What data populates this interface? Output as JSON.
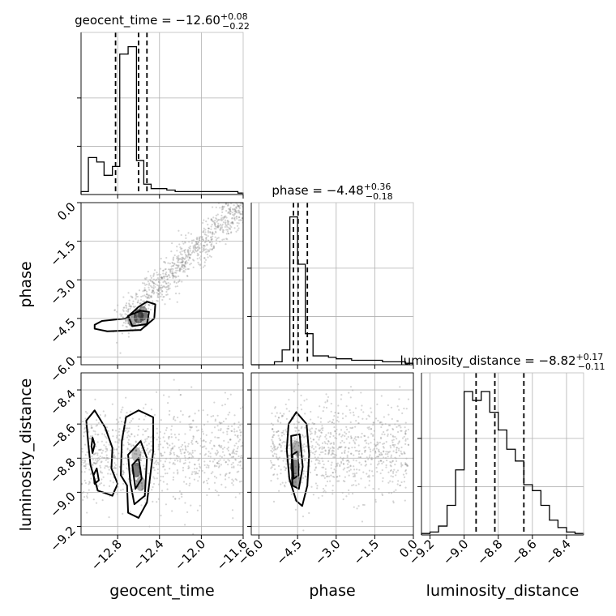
{
  "chart_data": {
    "type": "corner",
    "parameters": [
      "geocent_time",
      "phase",
      "luminosity_distance"
    ],
    "titles": {
      "geocent_time": {
        "name": "geocent_time",
        "median": "−12.60",
        "plus": "+0.08",
        "minus": "−0.22"
      },
      "phase": {
        "name": "phase",
        "median": "−4.48",
        "plus": "+0.36",
        "minus": "−0.18"
      },
      "luminosity_distance": {
        "name": "luminosity_distance",
        "median": "−8.82",
        "plus": "+0.17",
        "minus": "−0.11"
      }
    },
    "ranges": {
      "geocent_time": [
        -13.15,
        -11.6
      ],
      "phase": [
        -6.3,
        0.0
      ],
      "luminosity_distance": [
        -9.25,
        -8.3
      ]
    },
    "ticks": {
      "geocent_time": [
        -12.8,
        -12.4,
        -12.0,
        -11.6
      ],
      "phase": [
        -6.0,
        -4.5,
        -3.0,
        -1.5,
        0.0
      ],
      "luminosity_distance": [
        -9.2,
        -9.0,
        -8.8,
        -8.6,
        -8.4
      ]
    },
    "tick_labels": {
      "geocent_time": [
        "−12.8",
        "−12.4",
        "−12.0",
        "−11.6"
      ],
      "phase": [
        "−6.0",
        "−4.5",
        "−3.0",
        "−1.5",
        "0.0"
      ],
      "luminosity_distance": [
        "−9.2",
        "−9.0",
        "−8.8",
        "−8.6",
        "−8.4"
      ]
    },
    "quantiles": {
      "geocent_time": [
        -12.82,
        -12.6,
        -12.52
      ],
      "phase": [
        -4.66,
        -4.48,
        -4.12
      ],
      "luminosity_distance": [
        -8.93,
        -8.82,
        -8.65
      ]
    },
    "histograms": {
      "geocent_time": {
        "edges": [
          -13.15,
          -13.08,
          -13.0,
          -12.93,
          -12.85,
          -12.78,
          -12.7,
          -12.62,
          -12.55,
          -12.48,
          -12.4,
          -12.33,
          -12.25,
          -12.17,
          -12.1,
          -12.02,
          -11.95,
          -11.87,
          -11.8,
          -11.72,
          -11.65,
          -11.6
        ],
        "counts": [
          0.02,
          0.25,
          0.22,
          0.13,
          0.19,
          0.95,
          1.0,
          0.23,
          0.07,
          0.04,
          0.04,
          0.03,
          0.02,
          0.02,
          0.02,
          0.02,
          0.02,
          0.02,
          0.02,
          0.02,
          0.01
        ]
      },
      "phase": {
        "edges": [
          -6.3,
          -6.0,
          -5.7,
          -5.4,
          -5.1,
          -4.8,
          -4.5,
          -4.2,
          -3.9,
          -3.6,
          -3.3,
          -3.0,
          -2.7,
          -2.4,
          -2.1,
          -1.8,
          -1.5,
          -1.2,
          -0.9,
          -0.6,
          -0.3,
          0.0
        ],
        "counts": [
          0.0,
          0.0,
          0.0,
          0.02,
          0.1,
          1.0,
          0.68,
          0.21,
          0.06,
          0.06,
          0.05,
          0.04,
          0.04,
          0.03,
          0.03,
          0.03,
          0.03,
          0.02,
          0.02,
          0.02,
          0.01
        ]
      },
      "luminosity_distance": {
        "edges": [
          -9.25,
          -9.2,
          -9.15,
          -9.1,
          -9.05,
          -9.0,
          -8.95,
          -8.9,
          -8.85,
          -8.8,
          -8.75,
          -8.7,
          -8.65,
          -8.6,
          -8.55,
          -8.5,
          -8.45,
          -8.4,
          -8.35,
          -8.3
        ],
        "counts": [
          0.01,
          0.02,
          0.06,
          0.2,
          0.44,
          0.97,
          0.91,
          0.97,
          0.83,
          0.71,
          0.58,
          0.5,
          0.34,
          0.3,
          0.2,
          0.1,
          0.05,
          0.02,
          0.01
        ]
      }
    },
    "contours_2d": {
      "phase_vs_geocent_time": [
        [
          [
            -13.02,
            -4.75
          ],
          [
            -12.95,
            -4.6
          ],
          [
            -12.72,
            -4.5
          ],
          [
            -12.6,
            -4.05
          ],
          [
            -12.52,
            -3.85
          ],
          [
            -12.44,
            -3.95
          ],
          [
            -12.45,
            -4.5
          ],
          [
            -12.58,
            -4.95
          ],
          [
            -12.9,
            -5.0
          ],
          [
            -13.02,
            -4.9
          ]
        ],
        [
          [
            -12.7,
            -4.4
          ],
          [
            -12.58,
            -4.2
          ],
          [
            -12.5,
            -4.25
          ],
          [
            -12.52,
            -4.72
          ],
          [
            -12.66,
            -4.8
          ]
        ]
      ],
      "luminosity_distance_vs_geocent_time": [
        [
          [
            -13.1,
            -8.58
          ],
          [
            -13.02,
            -8.52
          ],
          [
            -12.92,
            -8.62
          ],
          [
            -12.85,
            -8.74
          ],
          [
            -12.86,
            -8.86
          ],
          [
            -12.8,
            -8.95
          ],
          [
            -12.85,
            -9.02
          ],
          [
            -12.99,
            -8.99
          ],
          [
            -13.06,
            -8.84
          ],
          [
            -13.08,
            -8.72
          ]
        ],
        [
          [
            -12.72,
            -8.56
          ],
          [
            -12.6,
            -8.52
          ],
          [
            -12.46,
            -8.56
          ],
          [
            -12.46,
            -8.76
          ],
          [
            -12.52,
            -9.06
          ],
          [
            -12.6,
            -9.15
          ],
          [
            -12.7,
            -9.12
          ],
          [
            -12.71,
            -8.96
          ],
          [
            -12.77,
            -8.9
          ],
          [
            -12.76,
            -8.7
          ]
        ],
        [
          [
            -12.7,
            -8.78
          ],
          [
            -12.58,
            -8.7
          ],
          [
            -12.52,
            -8.8
          ],
          [
            -12.54,
            -9.02
          ],
          [
            -12.64,
            -9.07
          ],
          [
            -12.68,
            -8.94
          ]
        ],
        [
          [
            -12.66,
            -8.84
          ],
          [
            -12.6,
            -8.8
          ],
          [
            -12.57,
            -8.92
          ],
          [
            -12.63,
            -8.98
          ]
        ],
        [
          [
            -13.03,
            -8.9
          ],
          [
            -13.0,
            -8.86
          ],
          [
            -12.98,
            -8.93
          ],
          [
            -13.02,
            -8.95
          ]
        ],
        [
          [
            -13.05,
            -8.73
          ],
          [
            -13.04,
            -8.68
          ],
          [
            -13.02,
            -8.72
          ],
          [
            -13.04,
            -8.77
          ]
        ]
      ],
      "luminosity_distance_vs_phase": [
        [
          [
            -4.85,
            -8.6
          ],
          [
            -4.55,
            -8.53
          ],
          [
            -4.15,
            -8.6
          ],
          [
            -4.05,
            -8.78
          ],
          [
            -4.12,
            -8.96
          ],
          [
            -4.32,
            -9.08
          ],
          [
            -4.55,
            -9.05
          ],
          [
            -4.82,
            -8.92
          ],
          [
            -4.92,
            -8.75
          ]
        ],
        [
          [
            -4.75,
            -8.67
          ],
          [
            -4.42,
            -8.66
          ],
          [
            -4.3,
            -8.85
          ],
          [
            -4.45,
            -8.98
          ],
          [
            -4.7,
            -8.96
          ]
        ],
        [
          [
            -4.7,
            -8.78
          ],
          [
            -4.5,
            -8.76
          ],
          [
            -4.46,
            -8.9
          ],
          [
            -4.66,
            -8.92
          ]
        ]
      ]
    },
    "density_blobs": {
      "phase_vs_geocent_time": [
        [
          -12.6,
          -4.42,
          0.85
        ],
        [
          -12.56,
          -4.3,
          0.65
        ],
        [
          -12.66,
          -4.55,
          0.55
        ],
        [
          -12.54,
          -4.55,
          0.45
        ]
      ],
      "luminosity_distance_vs_geocent_time": [
        [
          -12.62,
          -8.87,
          0.85
        ],
        [
          -12.58,
          -8.95,
          0.55
        ],
        [
          -12.62,
          -8.78,
          0.45
        ]
      ],
      "luminosity_distance_vs_phase": [
        [
          -4.6,
          -8.85,
          0.8
        ],
        [
          -4.58,
          -8.93,
          0.7
        ],
        [
          -4.55,
          -8.74,
          0.5
        ]
      ]
    }
  }
}
